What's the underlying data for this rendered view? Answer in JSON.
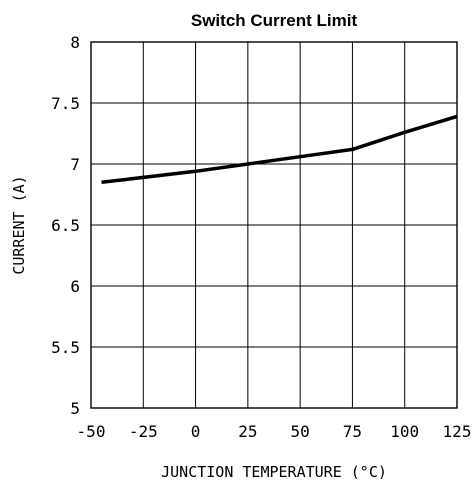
{
  "chart_data": {
    "type": "line",
    "title": "Switch Current Limit",
    "xlabel": "JUNCTION TEMPERATURE (°C)",
    "ylabel": "CURRENT (A)",
    "xlim": [
      -50,
      125
    ],
    "ylim": [
      5,
      8
    ],
    "xticks": [
      -50,
      -25,
      0,
      25,
      50,
      75,
      100,
      125
    ],
    "xtick_labels": [
      "-50",
      "-25",
      "0",
      "25",
      "50",
      "75",
      "100",
      "125"
    ],
    "yticks": [
      5,
      5.5,
      6,
      6.5,
      7,
      7.5,
      8
    ],
    "ytick_labels": [
      "5",
      "5.5",
      "6",
      "6.5",
      "7",
      "7.5",
      "8"
    ],
    "grid": true,
    "legend": "none",
    "series": [
      {
        "x": [
          -45,
          0,
          25,
          50,
          75,
          100,
          125
        ],
        "y": [
          6.85,
          6.94,
          7.0,
          7.06,
          7.12,
          7.26,
          7.39
        ]
      }
    ],
    "colors": {
      "line": "#000000",
      "grid": "#000000",
      "background": "#ffffff"
    }
  }
}
